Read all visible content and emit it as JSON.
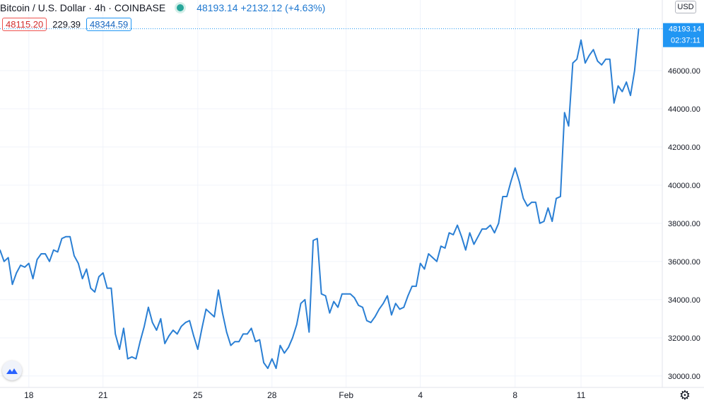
{
  "header": {
    "symbol_title": "Bitcoin / U.S. Dollar · 4h · COINBASE",
    "ohlc_change": "48193.14 +2132.12 (+4.63%)",
    "bid": "48115.20",
    "spread": "229.39",
    "ask": "48344.59"
  },
  "currency_button": "USD",
  "price_badge": {
    "price": "48193.14",
    "countdown": "02:37:11"
  },
  "colors": {
    "line": "#2a7fd4",
    "badge": "#2196f3",
    "grid": "#f0f3fa",
    "bid": "#ef5350"
  },
  "icons": {
    "logo": "tradingview-logo-icon",
    "settings": "gear-icon",
    "status": "market-open-dot-icon"
  },
  "chart_data": {
    "type": "line",
    "title": "Bitcoin / U.S. Dollar · 4h · COINBASE",
    "xlabel": "",
    "ylabel": "",
    "ylim": [
      29400,
      49700
    ],
    "y_ticks": [
      30000,
      32000,
      34000,
      36000,
      38000,
      40000,
      42000,
      44000,
      46000
    ],
    "y_tick_labels": [
      "30000.00",
      "32000.00",
      "34000.00",
      "36000.00",
      "38000.00",
      "40000.00",
      "42000.00",
      "44000.00",
      "46000.00"
    ],
    "x_ticks": [
      {
        "label": "18",
        "i": 7
      },
      {
        "label": "21",
        "i": 25
      },
      {
        "label": "25",
        "i": 48
      },
      {
        "label": "28",
        "i": 66
      },
      {
        "label": "Feb",
        "i": 84
      },
      {
        "label": "4",
        "i": 102
      },
      {
        "label": "8",
        "i": 125
      },
      {
        "label": "11",
        "i": 141
      }
    ],
    "grid": true,
    "series": [
      {
        "values": [
          36600,
          36000,
          36200,
          34800,
          35400,
          35800,
          35700,
          35900,
          35100,
          36100,
          36400,
          36400,
          36000,
          36600,
          36500,
          37200,
          37300,
          37300,
          36300,
          35900,
          35100,
          35600,
          34600,
          34400,
          35200,
          35400,
          34600,
          34600,
          32200,
          31400,
          32500,
          30900,
          31000,
          30900,
          31800,
          32600,
          33600,
          32800,
          32400,
          33000,
          31700,
          32100,
          32400,
          32200,
          32600,
          32800,
          32900,
          32100,
          31400,
          32500,
          33500,
          33300,
          33100,
          34500,
          33300,
          32300,
          31600,
          31800,
          31800,
          32200,
          32200,
          32500,
          31800,
          31900,
          30700,
          30400,
          30900,
          30400,
          31600,
          31200,
          31500,
          32000,
          32700,
          33800,
          34000,
          32300,
          37100,
          37200,
          34300,
          34200,
          33300,
          33900,
          33600,
          34300,
          34300,
          34300,
          34100,
          33700,
          33600,
          32900,
          32800,
          33100,
          33500,
          33800,
          34200,
          33200,
          33800,
          33500,
          33600,
          34200,
          34700,
          34700,
          35900,
          35600,
          36400,
          36200,
          36000,
          36800,
          36700,
          37500,
          37400,
          37900,
          37300,
          36600,
          37500,
          36900,
          37300,
          37700,
          37700,
          37900,
          37500,
          38000,
          39400,
          39400,
          40200,
          40900,
          40200,
          39300,
          38900,
          39100,
          39100,
          38000,
          38100,
          38800,
          38100,
          39300,
          39400,
          43800,
          43100,
          46400,
          46600,
          47600,
          46400,
          46800,
          47100,
          46500,
          46300,
          46600,
          46600,
          44300,
          45200,
          44900,
          45400,
          44700,
          46000,
          48193.14
        ]
      }
    ]
  }
}
